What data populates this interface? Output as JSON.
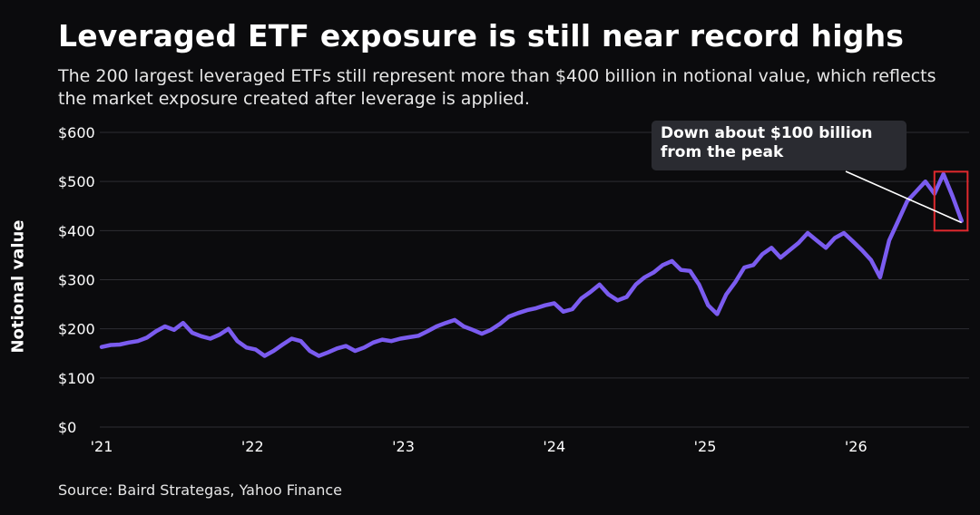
{
  "title": "Leveraged ETF exposure is still near record highs",
  "subtitle": "The 200 largest leveraged ETFs still represent more than $400 billion in notional value, which reflects the market exposure created after leverage is applied.",
  "source": "Source: Baird Strategas, Yahoo Finance",
  "annotation": {
    "line1": "Down about $100 billion",
    "line2": "from the peak"
  },
  "colors": {
    "background": "#0b0b0d",
    "line": "#7b5cf0",
    "grid": "#2e2e33",
    "highlight_box": "#e0292e",
    "annotation_bg": "#2a2b31"
  },
  "chart_data": {
    "type": "line",
    "title": "Leveraged ETF exposure is still near record highs",
    "ylabel": "Notional value",
    "xlabel": "",
    "ylim": [
      0,
      600
    ],
    "xlim": [
      2021.0,
      2026.75
    ],
    "y_ticks": [
      0,
      100,
      200,
      300,
      400,
      500,
      600
    ],
    "y_tick_labels": [
      "$0",
      "$100",
      "$200",
      "$300",
      "$400",
      "$500",
      "$600"
    ],
    "x_ticks": [
      2021,
      2022,
      2023,
      2024,
      2025,
      2026
    ],
    "x_tick_labels": [
      "'21",
      "'22",
      "'23",
      "'24",
      "'25",
      "'26"
    ],
    "grid": true,
    "series": [
      {
        "x": [
          2021.0,
          2021.06,
          2021.12,
          2021.18,
          2021.24,
          2021.3,
          2021.36,
          2021.42,
          2021.48,
          2021.54,
          2021.6,
          2021.66,
          2021.72,
          2021.78,
          2021.84,
          2021.9,
          2021.96,
          2022.02,
          2022.08,
          2022.14,
          2022.2,
          2022.26,
          2022.32,
          2022.38,
          2022.44,
          2022.5,
          2022.56,
          2022.62,
          2022.68,
          2022.74,
          2022.8,
          2022.86,
          2022.92,
          2022.98,
          2023.04,
          2023.1,
          2023.16,
          2023.22,
          2023.28,
          2023.34,
          2023.4,
          2023.46,
          2023.52,
          2023.58,
          2023.64,
          2023.7,
          2023.76,
          2023.82,
          2023.88,
          2023.94,
          2024.0,
          2024.06,
          2024.12,
          2024.18,
          2024.24,
          2024.3,
          2024.36,
          2024.42,
          2024.48,
          2024.54,
          2024.6,
          2024.66,
          2024.72,
          2024.78,
          2024.84,
          2024.9,
          2024.96,
          2025.02,
          2025.08,
          2025.14,
          2025.2,
          2025.26,
          2025.32,
          2025.38,
          2025.44,
          2025.5,
          2025.56,
          2025.62,
          2025.68,
          2025.74,
          2025.8,
          2025.86,
          2025.92,
          2025.98,
          2026.04,
          2026.1,
          2026.16,
          2026.22,
          2026.28,
          2026.34,
          2026.4,
          2026.46,
          2026.52,
          2026.58,
          2026.64,
          2026.7
        ],
        "values": [
          163,
          167,
          168,
          172,
          175,
          182,
          195,
          205,
          198,
          212,
          192,
          185,
          180,
          188,
          200,
          175,
          162,
          158,
          145,
          155,
          168,
          180,
          175,
          155,
          145,
          152,
          160,
          165,
          155,
          162,
          172,
          178,
          175,
          180,
          183,
          186,
          195,
          205,
          212,
          218,
          205,
          198,
          190,
          198,
          210,
          225,
          232,
          238,
          242,
          248,
          252,
          235,
          240,
          262,
          275,
          290,
          270,
          258,
          265,
          290,
          305,
          315,
          330,
          338,
          320,
          318,
          290,
          248,
          230,
          270,
          295,
          325,
          330,
          352,
          365,
          345,
          360,
          375,
          395,
          380,
          365,
          385,
          395,
          378,
          360,
          340,
          305,
          380,
          420,
          460,
          480,
          500,
          475,
          515,
          470,
          420
        ]
      }
    ]
  }
}
